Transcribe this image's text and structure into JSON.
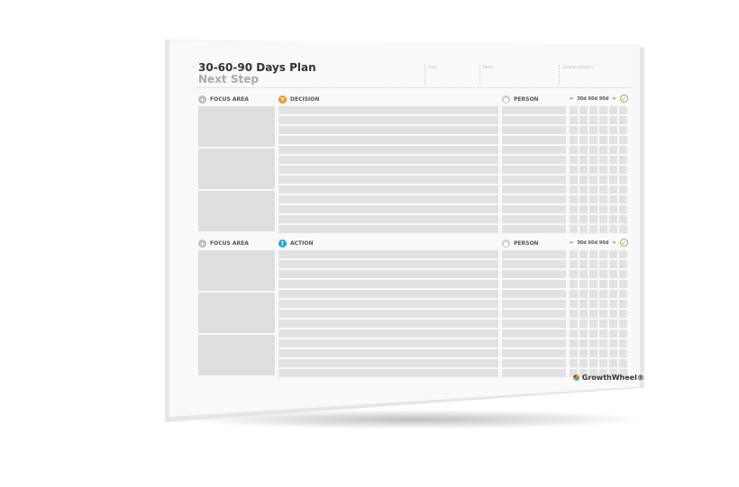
{
  "title": "30-60-90 Days Plan",
  "subtitle": "Next Step",
  "fields": [
    "Date",
    "Name",
    "Company/Project"
  ],
  "sections": [
    {
      "focus_label": "FOCUS AREA",
      "main_label": "DECISION",
      "main_icon": "decision-icon",
      "main_color": "#f0922b",
      "person_label": "PERSON",
      "timeline": "30d 60d 90d"
    },
    {
      "focus_label": "FOCUS AREA",
      "main_label": "ACTION",
      "main_icon": "action-icon",
      "main_color": "#2aa7c9",
      "person_label": "PERSON",
      "timeline": "30d 60d 90d"
    }
  ],
  "brand": "GrowthWheel®",
  "check_color": "#7cc04b"
}
